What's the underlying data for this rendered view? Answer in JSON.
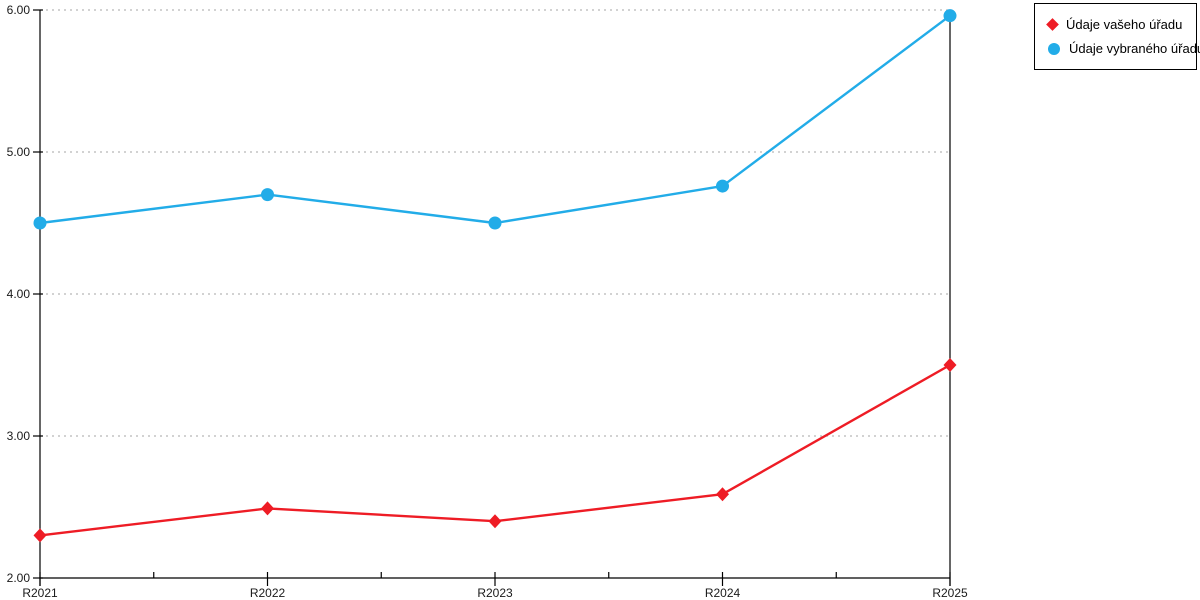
{
  "chart_data": {
    "type": "line",
    "categories": [
      "R2021",
      "R2022",
      "R2023",
      "R2024",
      "R2025"
    ],
    "series": [
      {
        "name": "Údaje vašeho úřadu",
        "values": [
          2.3,
          2.49,
          2.4,
          2.59,
          3.5
        ],
        "color": "#ee1c25",
        "marker": "diamond"
      },
      {
        "name": "Údaje vybraného úřadu",
        "values": [
          4.5,
          4.7,
          4.5,
          4.76,
          5.96
        ],
        "color": "#22ace8",
        "marker": "circle"
      }
    ],
    "title": "",
    "xlabel": "",
    "ylabel": "",
    "ylim": [
      2.0,
      6.0
    ],
    "y_ticks": [
      "2.00",
      "3.00",
      "4.00",
      "5.00",
      "6.00"
    ],
    "grid": "horizontal-dashed",
    "legend_position": "top-right"
  },
  "colors": {
    "grid": "#b8b8b8",
    "axis": "#000000",
    "background": "#ffffff",
    "tick_text": "#1a1a1a"
  }
}
